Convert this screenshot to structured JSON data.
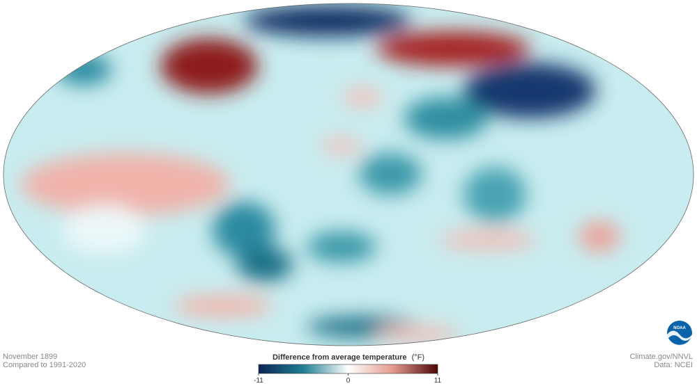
{
  "caption": {
    "date": "November 1899",
    "baseline": "Compared to 1991-2020"
  },
  "credits": {
    "site": "Climate.gov/NNVL",
    "source": "Data: NCEI",
    "logo": "NOAA"
  },
  "legend": {
    "title": "Difference from average temperature",
    "unit": "(°F)",
    "ticks": [
      -11,
      0,
      11
    ]
  }
}
